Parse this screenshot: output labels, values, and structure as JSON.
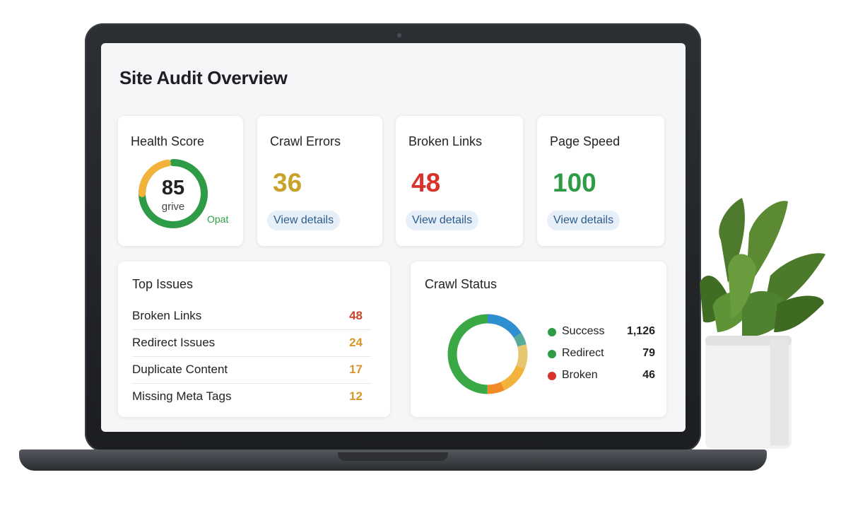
{
  "dashboard": {
    "title": "Site Audit Overview",
    "health": {
      "label": "Health Score",
      "value": "85",
      "sub_label": "grive",
      "tag": "Opat",
      "score_fraction": 0.85
    },
    "metrics": [
      {
        "label": "Crawl Errors",
        "value": "36",
        "color": "#c9a22a",
        "button": "View details"
      },
      {
        "label": "Broken Links",
        "value": "48",
        "color": "#d8332b",
        "button": "View details"
      },
      {
        "label": "Page Speed",
        "value": "100",
        "color": "#2e9b47",
        "button": "View details"
      }
    ],
    "top_issues": {
      "title": "Top Issues",
      "rows": [
        {
          "label": "Broken Links",
          "value": "48",
          "color": "#c9452a"
        },
        {
          "label": "Redirect Issues",
          "value": "24",
          "color": "#d8952a"
        },
        {
          "label": "Duplicate Content",
          "value": "17",
          "color": "#d8952a"
        },
        {
          "label": "Missing Meta Tags",
          "value": "12",
          "color": "#d8952a"
        }
      ]
    },
    "crawl_status": {
      "title": "Crawl Status",
      "legend": [
        {
          "label": "Success",
          "value": "1,126",
          "color": "#2e9b47"
        },
        {
          "label": "Redirect",
          "value": "79",
          "color": "#2e9b47"
        },
        {
          "label": "Broken",
          "value": "46",
          "color": "#d8332b"
        }
      ],
      "donut_colors": [
        "#2e8fd0",
        "#58aa9a",
        "#e6c670",
        "#f2b33a",
        "#f08a24",
        "#39a845",
        "#2e9b47",
        "#f08a24"
      ]
    }
  }
}
